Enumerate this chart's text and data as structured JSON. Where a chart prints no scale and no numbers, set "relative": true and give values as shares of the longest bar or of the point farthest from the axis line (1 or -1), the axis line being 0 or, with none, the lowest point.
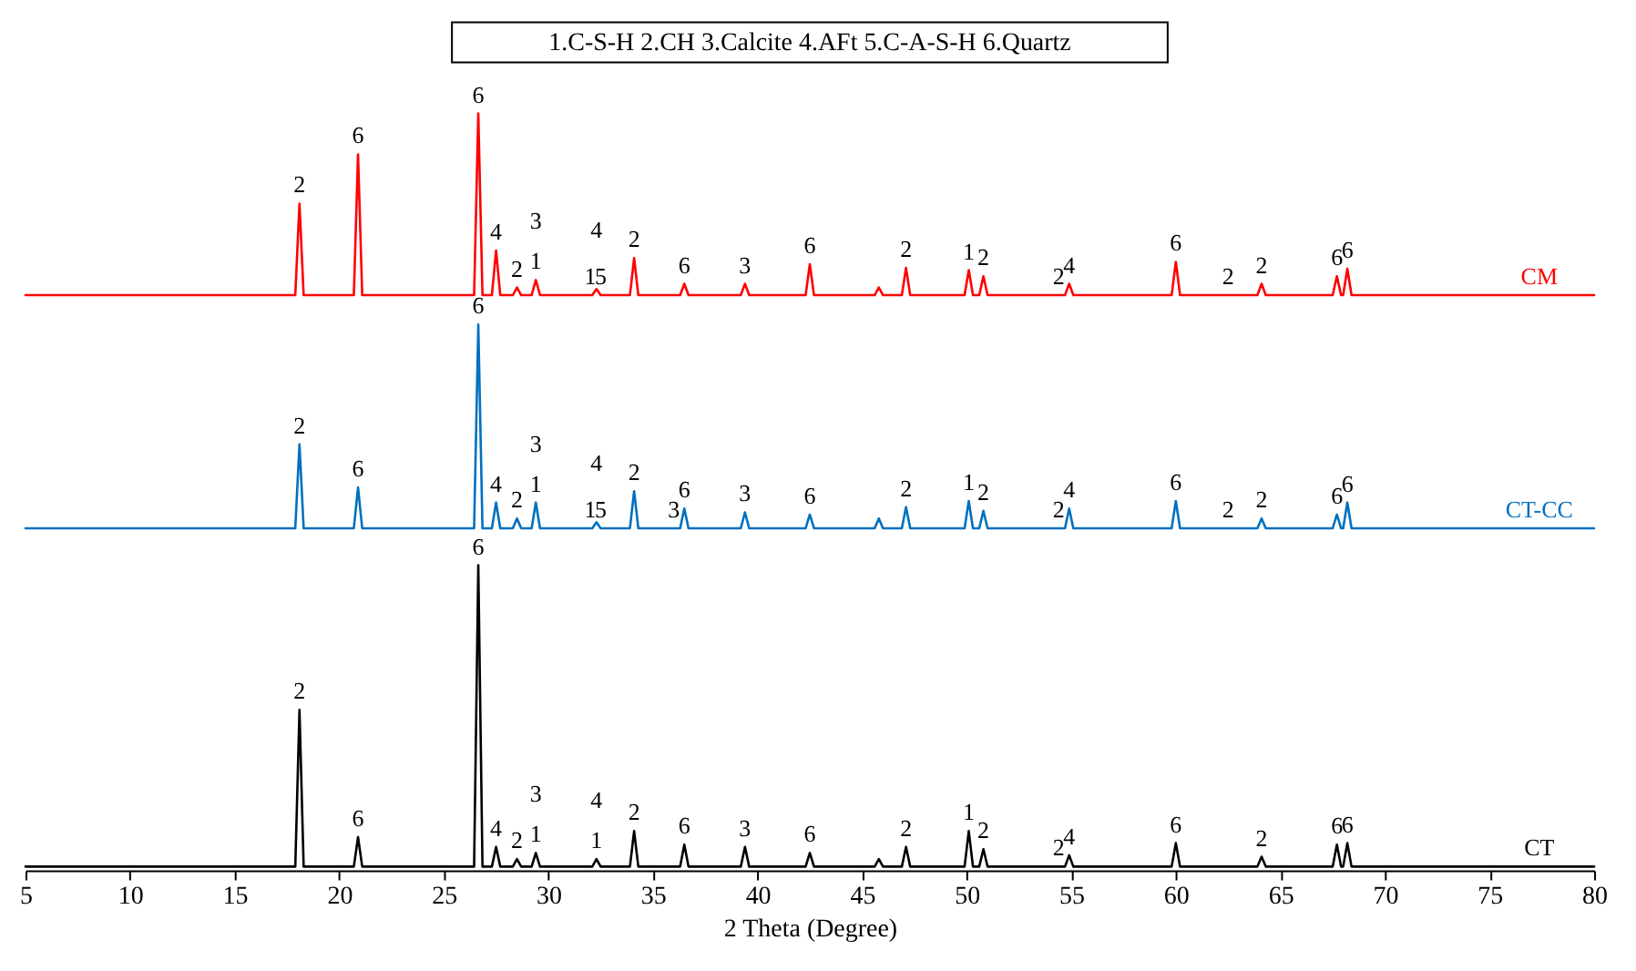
{
  "chart_data": {
    "type": "line",
    "relative": true,
    "xlabel": "2 Theta (Degree)",
    "xlim": [
      5,
      80
    ],
    "xticks": [
      5,
      10,
      15,
      20,
      25,
      30,
      35,
      40,
      45,
      50,
      55,
      60,
      65,
      70,
      75,
      80
    ],
    "grid": false,
    "marker": "none",
    "line_style": "solid",
    "x": [
      5,
      17.9,
      18.1,
      18.3,
      20.7,
      20.9,
      21.1,
      26.45,
      26.65,
      26.85,
      27.3,
      27.5,
      27.7,
      28.3,
      28.5,
      28.7,
      29.2,
      29.4,
      29.6,
      32.1,
      32.3,
      32.5,
      33.9,
      34.1,
      34.3,
      36.3,
      36.5,
      36.7,
      39.2,
      39.4,
      39.6,
      42.3,
      42.5,
      42.7,
      45.6,
      45.8,
      46.0,
      46.9,
      47.1,
      47.3,
      49.9,
      50.1,
      50.3,
      50.6,
      50.8,
      51.0,
      54.7,
      54.9,
      55.1,
      59.8,
      60,
      60.2,
      63.9,
      64.1,
      64.3,
      67.5,
      67.7,
      67.9,
      68.0,
      68.2,
      68.4,
      80
    ],
    "series": [
      {
        "name": "CM",
        "color": "#ff0000",
        "values": [
          0.76,
          0.76,
          0.881,
          0.76,
          0.76,
          0.946,
          0.76,
          0.76,
          1.0,
          0.76,
          0.76,
          0.819,
          0.76,
          0.76,
          0.77,
          0.76,
          0.76,
          0.78,
          0.76,
          0.76,
          0.768,
          0.76,
          0.76,
          0.809,
          0.76,
          0.76,
          0.775,
          0.76,
          0.76,
          0.775,
          0.76,
          0.76,
          0.801,
          0.76,
          0.76,
          0.77,
          0.76,
          0.76,
          0.796,
          0.76,
          0.76,
          0.793,
          0.76,
          0.76,
          0.785,
          0.76,
          0.76,
          0.775,
          0.76,
          0.76,
          0.804,
          0.76,
          0.76,
          0.775,
          0.76,
          0.76,
          0.785,
          0.76,
          0.76,
          0.795,
          0.76,
          0.76
        ]
      },
      {
        "name": "CT-CC",
        "color": "#0070c0",
        "values": [
          0.452,
          0.452,
          0.563,
          0.452,
          0.452,
          0.506,
          0.452,
          0.452,
          0.721,
          0.452,
          0.452,
          0.486,
          0.452,
          0.452,
          0.465,
          0.452,
          0.452,
          0.486,
          0.452,
          0.452,
          0.46,
          0.452,
          0.452,
          0.501,
          0.452,
          0.452,
          0.478,
          0.452,
          0.452,
          0.473,
          0.452,
          0.452,
          0.47,
          0.452,
          0.452,
          0.465,
          0.452,
          0.452,
          0.48,
          0.452,
          0.452,
          0.488,
          0.452,
          0.452,
          0.475,
          0.452,
          0.452,
          0.478,
          0.452,
          0.452,
          0.488,
          0.452,
          0.452,
          0.465,
          0.452,
          0.452,
          0.47,
          0.452,
          0.452,
          0.486,
          0.452,
          0.452
        ]
      },
      {
        "name": "CT",
        "color": "#000000",
        "values": [
          0.005,
          0.005,
          0.212,
          0.005,
          0.005,
          0.044,
          0.005,
          0.005,
          0.403,
          0.005,
          0.005,
          0.031,
          0.005,
          0.005,
          0.015,
          0.005,
          0.005,
          0.023,
          0.005,
          0.005,
          0.015,
          0.005,
          0.005,
          0.052,
          0.005,
          0.005,
          0.034,
          0.005,
          0.005,
          0.031,
          0.005,
          0.005,
          0.023,
          0.005,
          0.005,
          0.015,
          0.005,
          0.005,
          0.031,
          0.005,
          0.005,
          0.052,
          0.005,
          0.005,
          0.028,
          0.005,
          0.005,
          0.02,
          0.005,
          0.005,
          0.036,
          0.005,
          0.005,
          0.018,
          0.005,
          0.005,
          0.034,
          0.005,
          0.005,
          0.036,
          0.005,
          0.005
        ]
      }
    ],
    "annotations": [
      "1.C-S-H   2.CH   3.Calcite   4.AFt   5.C-A-S-H   6.Quartz",
      {
        "text": "2",
        "x": 18.1,
        "y": 0.881
      },
      {
        "text": "6",
        "x": 20.9,
        "y": 0.946
      },
      {
        "text": "6",
        "x": 26.65,
        "y": 1.0
      },
      {
        "text": "4",
        "x": 27.5,
        "y": 0.819
      },
      {
        "text": "2",
        "x": 28.5,
        "y": 0.77
      },
      {
        "text": "1",
        "x": 29.4,
        "y": 0.78
      },
      {
        "text": "3",
        "x": 29.4,
        "y": 0.78
      },
      {
        "text": "1",
        "x": 32.0,
        "y": 0.76
      },
      {
        "text": "5",
        "x": 32.5,
        "y": 0.76
      },
      {
        "text": "4",
        "x": 32.3,
        "y": 0.768
      },
      {
        "text": "2",
        "x": 34.1,
        "y": 0.809
      },
      {
        "text": "6",
        "x": 36.5,
        "y": 0.775
      },
      {
        "text": "3",
        "x": 39.4,
        "y": 0.775
      },
      {
        "text": "6",
        "x": 42.5,
        "y": 0.801
      },
      {
        "text": "2",
        "x": 47.1,
        "y": 0.796
      },
      {
        "text": "1",
        "x": 50.1,
        "y": 0.793
      },
      {
        "text": "2",
        "x": 50.8,
        "y": 0.785
      },
      {
        "text": "2",
        "x": 54.4,
        "y": 0.76
      },
      {
        "text": "4",
        "x": 54.9,
        "y": 0.775
      },
      {
        "text": "6",
        "x": 60,
        "y": 0.804
      },
      {
        "text": "2",
        "x": 62.5,
        "y": 0.76
      },
      {
        "text": "2",
        "x": 64.1,
        "y": 0.775
      },
      {
        "text": "6",
        "x": 67.7,
        "y": 0.785
      },
      {
        "text": "6",
        "x": 68.2,
        "y": 0.795
      },
      {
        "text": "2",
        "x": 18.1,
        "y": 0.563
      },
      {
        "text": "6",
        "x": 20.9,
        "y": 0.506
      },
      {
        "text": "6",
        "x": 26.65,
        "y": 0.721
      },
      {
        "text": "4",
        "x": 27.5,
        "y": 0.486
      },
      {
        "text": "2",
        "x": 28.5,
        "y": 0.465
      },
      {
        "text": "1",
        "x": 29.4,
        "y": 0.486
      },
      {
        "text": "3",
        "x": 29.4,
        "y": 0.486
      },
      {
        "text": "1",
        "x": 32.0,
        "y": 0.452
      },
      {
        "text": "5",
        "x": 32.5,
        "y": 0.452
      },
      {
        "text": "4",
        "x": 32.3,
        "y": 0.46
      },
      {
        "text": "2",
        "x": 34.1,
        "y": 0.501
      },
      {
        "text": "3",
        "x": 36.0,
        "y": 0.452
      },
      {
        "text": "6",
        "x": 36.5,
        "y": 0.478
      },
      {
        "text": "3",
        "x": 39.4,
        "y": 0.473
      },
      {
        "text": "6",
        "x": 42.5,
        "y": 0.47
      },
      {
        "text": "2",
        "x": 47.1,
        "y": 0.48
      },
      {
        "text": "1",
        "x": 50.1,
        "y": 0.488
      },
      {
        "text": "2",
        "x": 50.8,
        "y": 0.475
      },
      {
        "text": "2",
        "x": 54.4,
        "y": 0.452
      },
      {
        "text": "4",
        "x": 54.9,
        "y": 0.478
      },
      {
        "text": "6",
        "x": 60,
        "y": 0.488
      },
      {
        "text": "2",
        "x": 62.5,
        "y": 0.452
      },
      {
        "text": "2",
        "x": 64.1,
        "y": 0.465
      },
      {
        "text": "6",
        "x": 67.7,
        "y": 0.47
      },
      {
        "text": "6",
        "x": 68.2,
        "y": 0.486
      },
      {
        "text": "2",
        "x": 18.1,
        "y": 0.212
      },
      {
        "text": "6",
        "x": 20.9,
        "y": 0.044
      },
      {
        "text": "6",
        "x": 26.65,
        "y": 0.403
      },
      {
        "text": "4",
        "x": 27.5,
        "y": 0.031
      },
      {
        "text": "2",
        "x": 28.5,
        "y": 0.015
      },
      {
        "text": "1",
        "x": 29.4,
        "y": 0.023
      },
      {
        "text": "3",
        "x": 29.4,
        "y": 0.023
      },
      {
        "text": "1",
        "x": 32.3,
        "y": 0.015
      },
      {
        "text": "4",
        "x": 32.3,
        "y": 0.015
      },
      {
        "text": "2",
        "x": 34.1,
        "y": 0.052
      },
      {
        "text": "6",
        "x": 36.5,
        "y": 0.034
      },
      {
        "text": "3",
        "x": 39.4,
        "y": 0.031
      },
      {
        "text": "6",
        "x": 42.5,
        "y": 0.023
      },
      {
        "text": "2",
        "x": 47.1,
        "y": 0.031
      },
      {
        "text": "1",
        "x": 50.1,
        "y": 0.052
      },
      {
        "text": "2",
        "x": 50.8,
        "y": 0.028
      },
      {
        "text": "2",
        "x": 54.4,
        "y": 0.005
      },
      {
        "text": "4",
        "x": 54.9,
        "y": 0.02
      },
      {
        "text": "6",
        "x": 60,
        "y": 0.036
      },
      {
        "text": "2",
        "x": 64.1,
        "y": 0.018
      },
      {
        "text": "6",
        "x": 67.7,
        "y": 0.034
      },
      {
        "text": "6",
        "x": 68.2,
        "y": 0.036
      }
    ]
  }
}
